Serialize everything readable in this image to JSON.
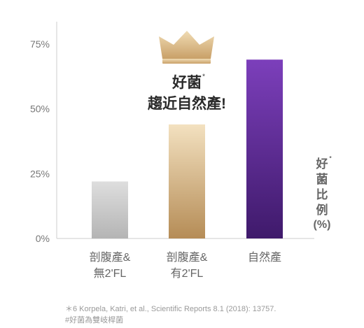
{
  "chart_data": {
    "type": "bar",
    "categories": [
      [
        "剖腹產&",
        "無2'FL"
      ],
      [
        "剖腹產&",
        "有2'FL"
      ],
      [
        "自然產"
      ]
    ],
    "values": [
      22,
      44,
      69
    ],
    "ylim": [
      0,
      75
    ],
    "yticks": [
      "0%",
      "25%",
      "50%",
      "75%"
    ],
    "ytick_values": [
      0,
      25,
      50,
      75
    ],
    "ylabel": [
      "好",
      "菌",
      "比",
      "例",
      "(%)"
    ],
    "ylabel_marker": "*",
    "annotation": {
      "lines": [
        "好菌",
        "趨近自然產!"
      ],
      "marker": "*",
      "icon": "crown-icon"
    },
    "grid": false,
    "bar_colors": [
      [
        "#dedede",
        "#b4b4b4"
      ],
      [
        "#f3e1c0",
        "#b58c56"
      ],
      [
        "#7c3fbb",
        "#3f1a6b"
      ]
    ],
    "crown_colors": [
      "#f0dcb4",
      "#c9a068"
    ]
  },
  "footnotes": [
    "＊6 Korpela, Katri, et al., Scientific Reports 8.1 (2018): 13757.",
    "#好菌為雙岐桿菌"
  ]
}
